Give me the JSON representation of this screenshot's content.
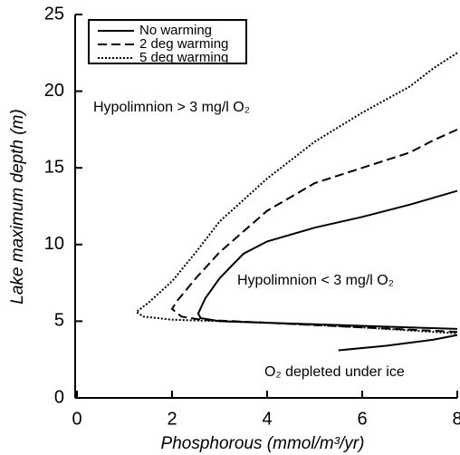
{
  "chart_data": {
    "type": "line",
    "xlabel": "Phosphorous (mmol/m³/yr)",
    "ylabel": "Lake maximum depth (m)",
    "xlim": [
      0,
      8
    ],
    "ylim": [
      0,
      25
    ],
    "xticks": [
      0,
      2,
      4,
      6,
      8
    ],
    "yticks": [
      0,
      5,
      10,
      15,
      20,
      25
    ],
    "legend": "top-left",
    "annotations": [
      "Hypolimnion > 3 mg/l O₂",
      "Hypolimnion < 3 mg/l O₂",
      "O₂ depleted under ice"
    ],
    "series": [
      {
        "name": "No warming",
        "color": "#000000",
        "dash": "solid",
        "x": [
          8,
          7,
          6,
          5,
          4,
          3.5,
          3,
          2.7,
          2.55,
          2.6,
          3,
          4,
          5,
          6,
          7,
          8,
          null,
          5.5,
          6.5,
          7.5,
          8
        ],
        "values": [
          13.5,
          12.6,
          11.8,
          11.1,
          10.2,
          9.4,
          7.8,
          6.5,
          5.5,
          5.2,
          5.0,
          4.9,
          4.8,
          4.7,
          4.6,
          4.5,
          null,
          3.1,
          3.4,
          3.8,
          4.1
        ]
      },
      {
        "name": "2 deg warming",
        "color": "#000000",
        "dash": "dashed",
        "x": [
          8,
          7.5,
          7,
          6,
          5,
          4,
          3,
          2.5,
          2.1,
          2.0,
          2.2,
          2.6,
          4,
          6,
          8
        ],
        "values": [
          17.5,
          16.8,
          16,
          15,
          14,
          12.2,
          9.5,
          7.8,
          6.3,
          5.8,
          5.3,
          5.1,
          4.9,
          4.6,
          4.3
        ]
      },
      {
        "name": "5 deg warming",
        "color": "#000000",
        "dash": "dotted",
        "x": [
          8,
          7.5,
          7,
          6,
          5,
          4,
          3,
          2.5,
          2,
          1.5,
          1.25,
          1.4,
          2,
          3,
          4,
          6,
          8
        ],
        "values": [
          22.5,
          21.5,
          20.3,
          18.6,
          16.7,
          14.3,
          11.5,
          9.5,
          7.6,
          6.2,
          5.6,
          5.3,
          5.1,
          5.0,
          4.9,
          4.6,
          4.2
        ]
      }
    ]
  }
}
